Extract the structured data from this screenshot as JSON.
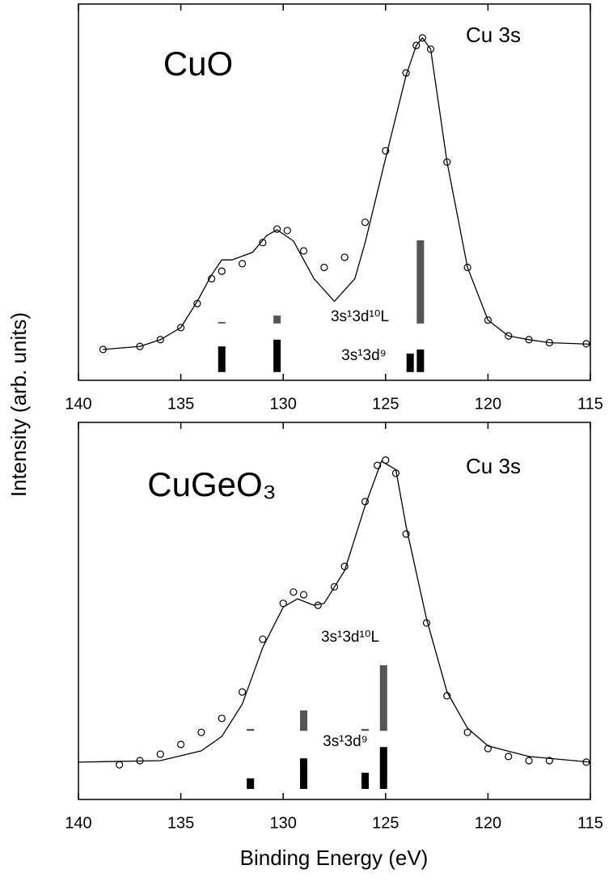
{
  "chart_data": [
    {
      "type": "scatter",
      "title": "CuO",
      "subtitle": "Cu 3s",
      "ylabel": "Intensity (arb. units)",
      "xlim": [
        140,
        115
      ],
      "ylim": [
        0,
        100
      ],
      "xticks": [
        140,
        135,
        130,
        125,
        120,
        115
      ],
      "series": [
        {
          "style": "markers",
          "color": "#000000",
          "x": [
            138.8,
            137,
            136,
            135,
            134.2,
            133.5,
            133,
            132,
            131,
            130.3,
            129.8,
            129,
            128,
            127,
            126,
            125,
            124,
            123.5,
            123.2,
            122.8,
            122,
            121,
            120,
            119,
            118,
            117,
            115.2
          ],
          "values": [
            8.2,
            9,
            10.8,
            14,
            20.4,
            27,
            29,
            31,
            36.6,
            40.2,
            39.8,
            34.4,
            30,
            32.7,
            42,
            61,
            81.7,
            89,
            91,
            88,
            58,
            30,
            16,
            11.8,
            10.8,
            10,
            9.7
          ]
        },
        {
          "style": "line",
          "color": "#000000",
          "x": [
            138.8,
            137,
            136,
            135,
            134.2,
            133.5,
            133,
            132.5,
            131.5,
            130.8,
            130.3,
            129.5,
            128.5,
            127.5,
            126.5,
            126,
            125,
            124,
            123.5,
            123.2,
            122.8,
            122,
            121,
            120,
            119,
            118,
            117,
            115
          ],
          "values": [
            8.2,
            9,
            10.8,
            14,
            21,
            28,
            32,
            32,
            34,
            38.5,
            40,
            37,
            27,
            21,
            27,
            36.6,
            59,
            81,
            89,
            91,
            88,
            58,
            30,
            16,
            11.8,
            10.8,
            10,
            9.6
          ]
        }
      ],
      "sticks": [
        {
          "name": "3s¹3d⁹",
          "color": "#000000",
          "base": 2.2,
          "x": [
            133,
            130.3,
            123.8,
            123.3
          ],
          "values": [
            9,
            10.8,
            7.1,
            8.2
          ]
        },
        {
          "name": "3s¹3d¹⁰L",
          "color": "#555555",
          "base": 15.1,
          "x": [
            133,
            130.3,
            123.3
          ],
          "values": [
            15.5,
            17.2,
            37.2
          ]
        }
      ]
    },
    {
      "type": "scatter",
      "title": "CuGeO₃",
      "subtitle": "Cu 3s",
      "xlabel": "Binding Energy (eV)",
      "xlim": [
        140,
        115
      ],
      "ylim": [
        0,
        100
      ],
      "xticks": [
        140,
        135,
        130,
        125,
        120,
        115
      ],
      "series": [
        {
          "style": "markers",
          "color": "#000000",
          "x": [
            138,
            137,
            136,
            135,
            134,
            133,
            132,
            131,
            130,
            129.5,
            129,
            128.3,
            127.5,
            127,
            126,
            125.4,
            125,
            124.5,
            124,
            123,
            122,
            121,
            120,
            119,
            118,
            117,
            115.2
          ],
          "values": [
            9.2,
            10.3,
            12,
            14.6,
            17.8,
            21.5,
            28.5,
            42.5,
            52,
            55,
            54.3,
            51.5,
            56.4,
            61.8,
            79,
            88.6,
            90,
            86.5,
            70.4,
            46.8,
            27.5,
            17.8,
            13.5,
            11.4,
            10.3,
            10.3,
            9.9
          ]
        },
        {
          "style": "line",
          "color": "#000000",
          "x": [
            140,
            136,
            134,
            133,
            132,
            131,
            130,
            129.3,
            128.5,
            128,
            127,
            126,
            125.2,
            124.5,
            124,
            123,
            122,
            121,
            120,
            118,
            115
          ],
          "values": [
            9.9,
            10.3,
            12.9,
            16.7,
            25.3,
            40.3,
            51,
            53.2,
            51.5,
            52,
            60.7,
            77.9,
            89.7,
            87.5,
            72.5,
            47.9,
            28.5,
            18.9,
            14.2,
            11.4,
            9.9
          ]
        }
      ],
      "sticks": [
        {
          "name": "3s¹3d⁹",
          "color": "#000000",
          "base": 2.8,
          "x": [
            131.6,
            129,
            126,
            125.1
          ],
          "values": [
            5.6,
            10.9,
            7.1,
            13.9
          ]
        },
        {
          "name": "3s¹3d¹⁰L",
          "color": "#555555",
          "base": 18.2,
          "x": [
            131.6,
            129,
            126,
            125.1
          ],
          "values": [
            18.7,
            23.6,
            18.7,
            35.6
          ]
        }
      ]
    }
  ]
}
